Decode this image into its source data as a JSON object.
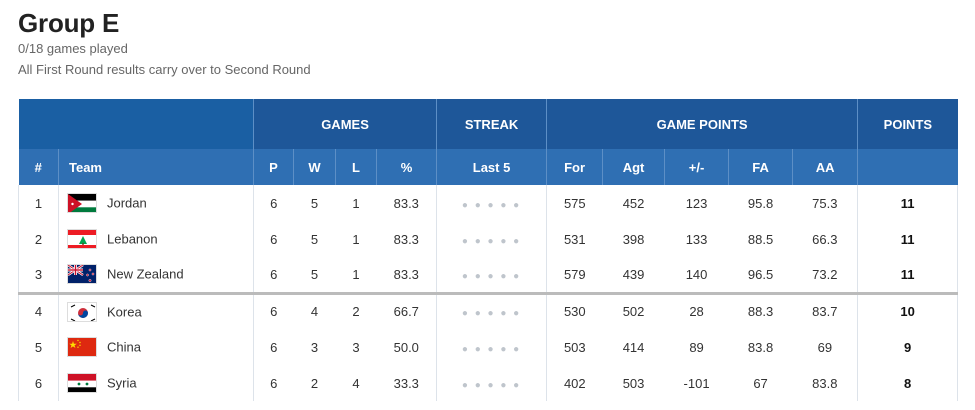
{
  "header": {
    "title": "Group E",
    "games_played": "0/18 games played",
    "note": "All First Round results carry over to Second Round"
  },
  "table": {
    "group_headers": {
      "games": "GAMES",
      "streak": "STREAK",
      "game_points": "GAME POINTS",
      "points": "POINTS"
    },
    "columns": {
      "rank": "#",
      "team": "Team",
      "p": "P",
      "w": "W",
      "l": "L",
      "pct": "%",
      "last5": "Last 5",
      "for": "For",
      "agt": "Agt",
      "diff": "+/-",
      "fa": "FA",
      "aa": "AA"
    },
    "rows": [
      {
        "rank": "1",
        "team": "Jordan",
        "flag": "jordan-flag-icon",
        "p": "6",
        "w": "5",
        "l": "1",
        "pct": "83.3",
        "streak": "● ● ● ● ●",
        "for": "575",
        "agt": "452",
        "diff": "123",
        "fa": "95.8",
        "aa": "75.3",
        "points": "11"
      },
      {
        "rank": "2",
        "team": "Lebanon",
        "flag": "lebanon-flag-icon",
        "p": "6",
        "w": "5",
        "l": "1",
        "pct": "83.3",
        "streak": "● ● ● ● ●",
        "for": "531",
        "agt": "398",
        "diff": "133",
        "fa": "88.5",
        "aa": "66.3",
        "points": "11"
      },
      {
        "rank": "3",
        "team": "New Zealand",
        "flag": "new-zealand-flag-icon",
        "p": "6",
        "w": "5",
        "l": "1",
        "pct": "83.3",
        "streak": "● ● ● ● ●",
        "for": "579",
        "agt": "439",
        "diff": "140",
        "fa": "96.5",
        "aa": "73.2",
        "points": "11"
      },
      {
        "rank": "4",
        "team": "Korea",
        "flag": "korea-flag-icon",
        "p": "6",
        "w": "4",
        "l": "2",
        "pct": "66.7",
        "streak": "● ● ● ● ●",
        "for": "530",
        "agt": "502",
        "diff": "28",
        "fa": "88.3",
        "aa": "83.7",
        "points": "10"
      },
      {
        "rank": "5",
        "team": "China",
        "flag": "china-flag-icon",
        "p": "6",
        "w": "3",
        "l": "3",
        "pct": "50.0",
        "streak": "● ● ● ● ●",
        "for": "503",
        "agt": "414",
        "diff": "89",
        "fa": "83.8",
        "aa": "69",
        "points": "9"
      },
      {
        "rank": "6",
        "team": "Syria",
        "flag": "syria-flag-icon",
        "p": "6",
        "w": "2",
        "l": "4",
        "pct": "33.3",
        "streak": "● ● ● ● ●",
        "for": "402",
        "agt": "503",
        "diff": "-101",
        "fa": "67",
        "aa": "83.8",
        "points": "8"
      }
    ]
  },
  "colors": {
    "header_blue": "#1e5799",
    "subheader_blue": "#2f6fb3",
    "streak_dot": "#bfc5cc"
  }
}
